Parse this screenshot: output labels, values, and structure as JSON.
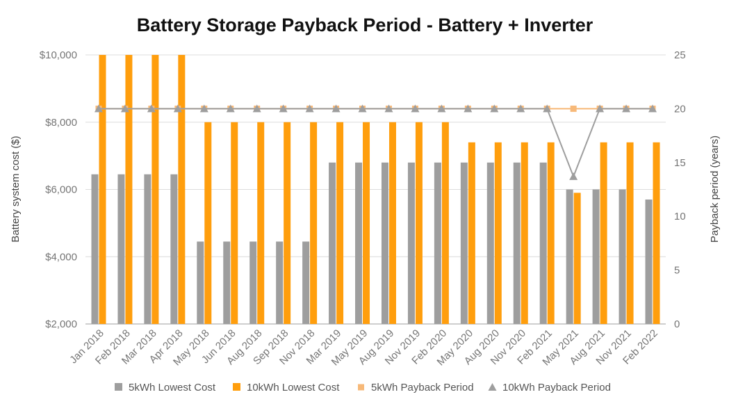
{
  "chart_data": {
    "type": "bar",
    "title": "Battery Storage Payback Period - Battery + Inverter",
    "ylabel": "Battery system cost ($)",
    "y2label": "Payback period (years)",
    "ylim": [
      2000,
      10000
    ],
    "y2lim": [
      0,
      25
    ],
    "yticks": [
      "$2,000",
      "$4,000",
      "$6,000",
      "$8,000",
      "$10,000"
    ],
    "y2ticks": [
      "0",
      "5",
      "10",
      "15",
      "20",
      "25"
    ],
    "grid": true,
    "legend_position": "bottom",
    "categories": [
      "Jan 2018",
      "Feb 2018",
      "Mar 2018",
      "Apr 2018",
      "May 2018",
      "Jun 2018",
      "Aug 2018",
      "Sep 2018",
      "Nov 2018",
      "Mar 2019",
      "May 2019",
      "Aug 2019",
      "Nov 2019",
      "Feb 2020",
      "May 2020",
      "Aug 2020",
      "Nov 2020",
      "Feb 2021",
      "May 2021",
      "Aug 2021",
      "Nov 2021",
      "Feb 2022"
    ],
    "series": [
      {
        "name": "5kWh Lowest Cost",
        "kind": "bar",
        "axis": "left",
        "color": "#9e9e9e",
        "values": [
          6450,
          6450,
          6450,
          6450,
          4450,
          4450,
          4450,
          4450,
          4450,
          6800,
          6800,
          6800,
          6800,
          6800,
          6800,
          6800,
          6800,
          6800,
          6000,
          6000,
          6000,
          5700
        ]
      },
      {
        "name": "10kWh Lowest Cost",
        "kind": "bar",
        "axis": "left",
        "color": "#ff9e0d",
        "values": [
          10000,
          10000,
          10000,
          10000,
          8000,
          8000,
          8000,
          8000,
          8000,
          8000,
          8000,
          8000,
          8000,
          8000,
          7400,
          7400,
          7400,
          7400,
          5900,
          7400,
          7400,
          7400
        ]
      },
      {
        "name": "5kWh Payback Period",
        "kind": "line",
        "marker": "square",
        "axis": "right",
        "color": "#f7b979",
        "values": [
          20,
          20,
          20,
          20,
          20,
          20,
          20,
          20,
          20,
          20,
          20,
          20,
          20,
          20,
          20,
          20,
          20,
          20,
          20,
          20,
          20,
          20
        ]
      },
      {
        "name": "10kWh Payback Period",
        "kind": "line",
        "marker": "triangle",
        "axis": "right",
        "color": "#9e9e9e",
        "values": [
          20,
          20,
          20,
          20,
          20,
          20,
          20,
          20,
          20,
          20,
          20,
          20,
          20,
          20,
          20,
          20,
          20,
          20,
          13.7,
          20,
          20,
          20
        ]
      }
    ]
  }
}
